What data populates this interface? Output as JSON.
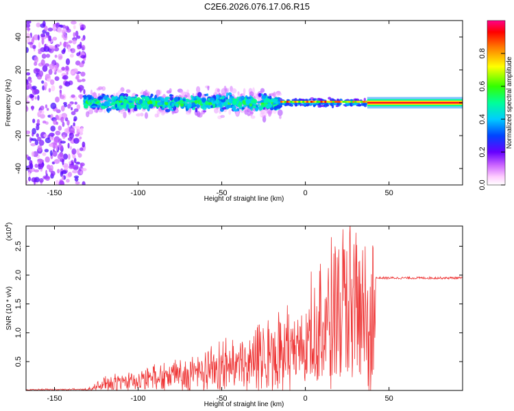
{
  "title": "C2E6.2026.076.17.06.R15",
  "chart_data": [
    {
      "type": "heatmap",
      "name": "spectrogram",
      "xlabel": "Height of straight line (km)",
      "ylabel": "Frequency (Hz)",
      "xlim": [
        -167,
        94
      ],
      "ylim": [
        -50,
        50
      ],
      "xticks": [
        -150,
        -100,
        -50,
        0,
        50
      ],
      "yticks": [
        -40,
        -20,
        0,
        20,
        40
      ],
      "colorbar": {
        "label": "Normalized spectral amplitude",
        "range": [
          0.0,
          1.0
        ],
        "ticks": [
          0.0,
          0.2,
          0.4,
          0.6,
          0.8
        ],
        "tick_labels": [
          "0.0",
          "0.2",
          "0.4",
          "0.6",
          "0.8"
        ],
        "colors": [
          "#ffffff",
          "#f0d8ff",
          "#a060ff",
          "#5a00e6",
          "#0000ff",
          "#00c0ff",
          "#00ffa0",
          "#30ff30",
          "#ffff00",
          "#ff8000",
          "#ff0000",
          "#ff0080"
        ]
      },
      "features": [
        {
          "region": "noise",
          "x_range": [
            -167,
            -132
          ],
          "freq_spread": 50,
          "amplitude": 0.15
        },
        {
          "region": "dispersed",
          "x_range": [
            -132,
            -15
          ],
          "freq_spread": 8,
          "amplitude": 0.35
        },
        {
          "region": "narrowing",
          "x_range": [
            -15,
            37
          ],
          "freq_spread": 3,
          "amplitude": 0.75
        },
        {
          "region": "steady",
          "x_range": [
            37,
            94
          ],
          "freq_spread": 1,
          "amplitude": 0.95
        }
      ]
    },
    {
      "type": "line",
      "name": "snr",
      "xlabel": "Height of straight line (km)",
      "ylabel": "SNR (10 * v/v)",
      "scale_label": "(x10",
      "scale_exp": "4",
      "scale_close": ")",
      "xlim": [
        -167,
        94
      ],
      "ylim": [
        0,
        2.85
      ],
      "xticks": [
        -150,
        -100,
        -50,
        0,
        50
      ],
      "yticks": [
        0.5,
        1.0,
        1.5,
        2.0,
        2.5
      ],
      "ytick_labels": [
        "0.5",
        "1.0",
        "1.5",
        "2.0",
        "2.5"
      ],
      "color": "#ee3333",
      "series": [
        {
          "name": "SNR envelope",
          "x": [
            -167,
            -130,
            -120,
            -100,
            -80,
            -60,
            -40,
            -20,
            -10,
            0,
            10,
            20,
            30,
            35,
            40,
            42,
            94
          ],
          "values": [
            0.02,
            0.03,
            0.2,
            0.3,
            0.45,
            0.6,
            0.85,
            1.1,
            1.3,
            1.5,
            1.8,
            2.3,
            2.5,
            2.7,
            2.2,
            1.95,
            1.95
          ]
        }
      ]
    }
  ]
}
